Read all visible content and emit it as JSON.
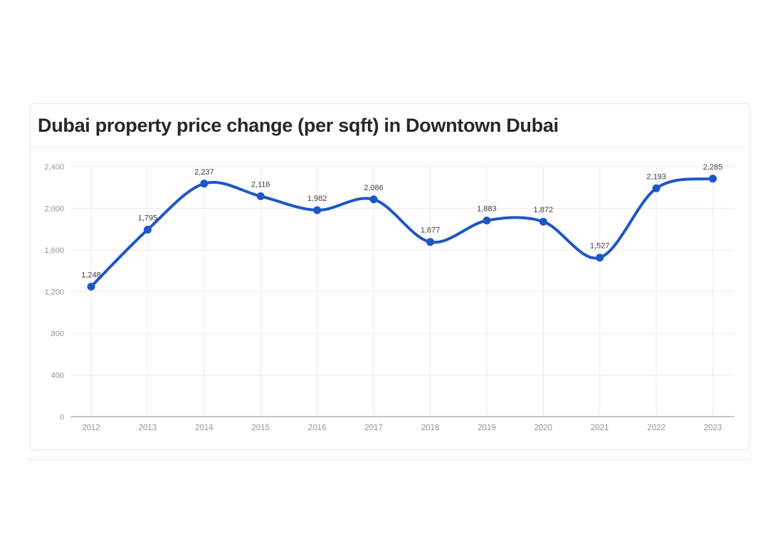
{
  "card": {
    "title": "Dubai property price change (per sqft) in Downtown Dubai"
  },
  "chart_data": {
    "type": "line",
    "title": "Dubai property price change (per sqft) in Downtown Dubai",
    "x": [
      "2012",
      "2013",
      "2014",
      "2015",
      "2016",
      "2017",
      "2018",
      "2019",
      "2020",
      "2021",
      "2022",
      "2023"
    ],
    "series": [
      {
        "name": "Price per sqft",
        "values": [
          1248,
          1795,
          2237,
          2116,
          1982,
          2086,
          1677,
          1883,
          1872,
          1527,
          2193,
          2285
        ],
        "labels": [
          "1,248",
          "1,795",
          "2,237",
          "2,116",
          "1,982",
          "2,086",
          "1,677",
          "1,883",
          "1,872",
          "1,527",
          "2,193",
          "2,285"
        ],
        "color": "#1c57c7"
      }
    ],
    "ylim": [
      0,
      2400
    ],
    "yticks": [
      0,
      400,
      800,
      1200,
      1600,
      2000,
      2400
    ],
    "ytick_labels": [
      "0",
      "400",
      "800",
      "1,200",
      "1,600",
      "2,000",
      "2,400"
    ],
    "grid": true,
    "smooth": true,
    "legend": "none",
    "colors": {
      "line": "#1c57c7",
      "point": "#1c57c7",
      "gridline": "#e9eaed",
      "axis_line": "#c2c6ca",
      "tick_label": "#8f9499",
      "data_label": "#3c4043"
    }
  }
}
